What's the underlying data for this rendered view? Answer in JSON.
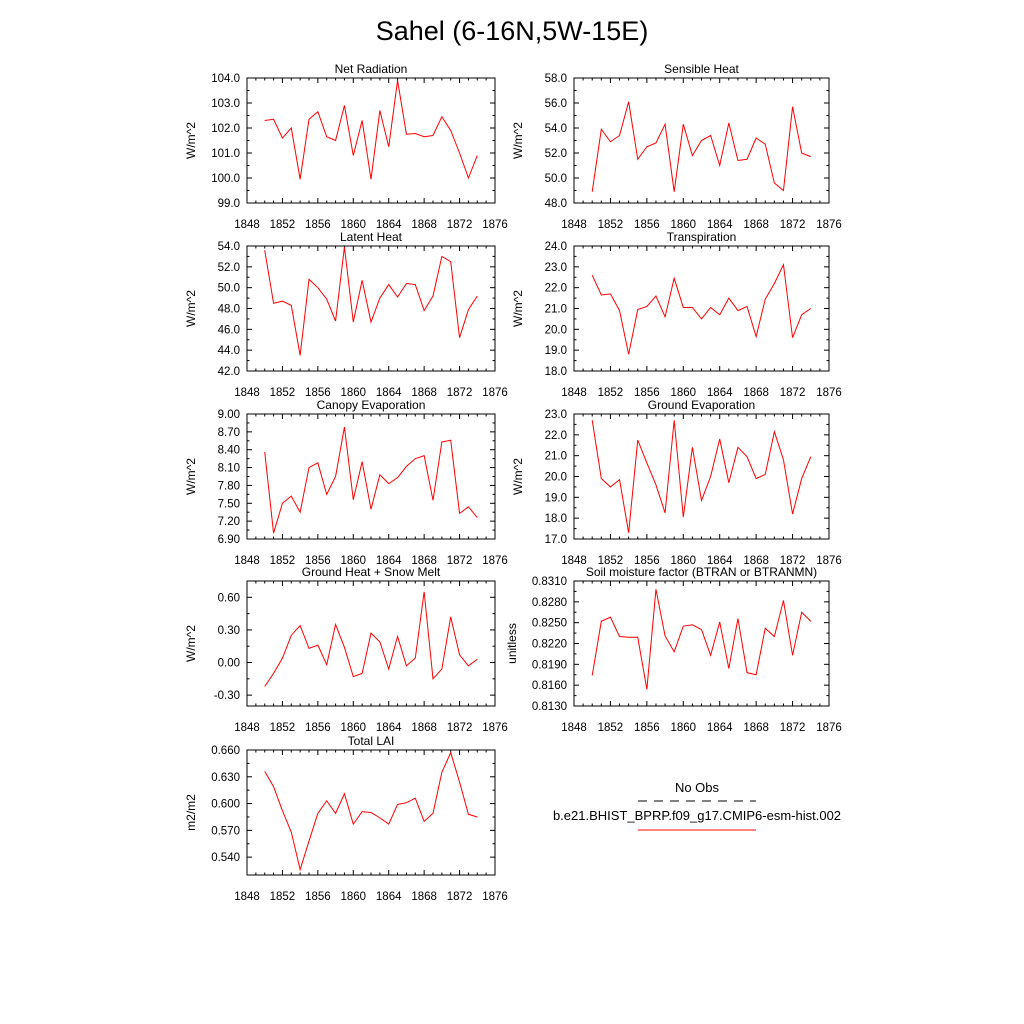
{
  "figure": {
    "title": "Sahel (6-16N,5W-15E)"
  },
  "legend": {
    "entries": [
      {
        "label": "No Obs",
        "style": "dashed",
        "color": "#000000"
      },
      {
        "label": "b.e21.BHIST_BPRP.f09_g17.CMIP6-esm-hist.002",
        "style": "solid",
        "color": "#ff0000"
      }
    ]
  },
  "colors": {
    "series": "#ff0000",
    "axes": "#000000",
    "background": "#ffffff"
  },
  "chart_data": [
    {
      "type": "line",
      "title": "Net Radiation",
      "ylabel": "W/m^2",
      "xlim": [
        1848,
        1876
      ],
      "ylim": [
        99.0,
        104.0
      ],
      "x_ticks": [
        "1848",
        "1852",
        "1856",
        "1860",
        "1864",
        "1868",
        "1872",
        "1876"
      ],
      "y_ticks": [
        "99.0",
        "100.0",
        "101.0",
        "102.0",
        "103.0",
        "104.0"
      ],
      "x": [
        1850,
        1851,
        1852,
        1853,
        1854,
        1855,
        1856,
        1857,
        1858,
        1859,
        1860,
        1861,
        1862,
        1863,
        1864,
        1865,
        1866,
        1867,
        1868,
        1869,
        1870,
        1871,
        1872,
        1873,
        1874
      ],
      "series": [
        {
          "values": [
            102.3,
            102.35,
            101.6,
            102.0,
            99.95,
            102.35,
            102.65,
            101.65,
            101.5,
            102.9,
            100.9,
            102.3,
            99.95,
            102.7,
            101.25,
            103.9,
            101.75,
            101.78,
            101.65,
            101.7,
            102.45,
            101.9,
            101.0,
            100.0,
            100.9
          ]
        }
      ]
    },
    {
      "type": "line",
      "title": "Sensible Heat",
      "ylabel": "W/m^2",
      "xlim": [
        1848,
        1876
      ],
      "ylim": [
        48.0,
        58.0
      ],
      "x_ticks": [
        "1848",
        "1852",
        "1856",
        "1860",
        "1864",
        "1868",
        "1872",
        "1876"
      ],
      "y_ticks": [
        "48.0",
        "50.0",
        "52.0",
        "54.0",
        "56.0",
        "58.0"
      ],
      "x": [
        1850,
        1851,
        1852,
        1853,
        1854,
        1855,
        1856,
        1857,
        1858,
        1859,
        1860,
        1861,
        1862,
        1863,
        1864,
        1865,
        1866,
        1867,
        1868,
        1869,
        1870,
        1871,
        1872,
        1873,
        1874
      ],
      "series": [
        {
          "values": [
            48.9,
            53.9,
            52.9,
            53.4,
            56.1,
            51.5,
            52.5,
            52.8,
            54.3,
            48.9,
            54.3,
            51.8,
            53.0,
            53.4,
            51.0,
            54.4,
            51.4,
            51.5,
            53.2,
            52.7,
            49.6,
            49.0,
            55.7,
            52.0,
            51.7
          ]
        }
      ]
    },
    {
      "type": "line",
      "title": "Latent Heat",
      "ylabel": "W/m^2",
      "xlim": [
        1848,
        1876
      ],
      "ylim": [
        42.0,
        54.0
      ],
      "x_ticks": [
        "1848",
        "1852",
        "1856",
        "1860",
        "1864",
        "1868",
        "1872",
        "1876"
      ],
      "y_ticks": [
        "42.0",
        "44.0",
        "46.0",
        "48.0",
        "50.0",
        "52.0",
        "54.0"
      ],
      "x": [
        1850,
        1851,
        1852,
        1853,
        1854,
        1855,
        1856,
        1857,
        1858,
        1859,
        1860,
        1861,
        1862,
        1863,
        1864,
        1865,
        1866,
        1867,
        1868,
        1869,
        1870,
        1871,
        1872,
        1873,
        1874
      ],
      "series": [
        {
          "values": [
            53.6,
            48.5,
            48.7,
            48.3,
            43.5,
            50.8,
            50.0,
            48.9,
            46.8,
            53.9,
            46.7,
            50.7,
            46.7,
            49.0,
            50.3,
            49.1,
            50.4,
            50.3,
            47.8,
            49.2,
            53.0,
            52.5,
            45.2,
            47.9,
            49.2
          ]
        }
      ]
    },
    {
      "type": "line",
      "title": "Transpiration",
      "ylabel": "W/m^2",
      "xlim": [
        1848,
        1876
      ],
      "ylim": [
        18.0,
        24.0
      ],
      "x_ticks": [
        "1848",
        "1852",
        "1856",
        "1860",
        "1864",
        "1868",
        "1872",
        "1876"
      ],
      "y_ticks": [
        "18.0",
        "19.0",
        "20.0",
        "21.0",
        "22.0",
        "23.0",
        "24.0"
      ],
      "x": [
        1850,
        1851,
        1852,
        1853,
        1854,
        1855,
        1856,
        1857,
        1858,
        1859,
        1860,
        1861,
        1862,
        1863,
        1864,
        1865,
        1866,
        1867,
        1868,
        1869,
        1870,
        1871,
        1872,
        1873,
        1874
      ],
      "series": [
        {
          "values": [
            22.6,
            21.65,
            21.7,
            20.9,
            18.8,
            20.95,
            21.1,
            21.6,
            20.6,
            22.45,
            21.05,
            21.05,
            20.5,
            21.05,
            20.7,
            21.5,
            20.9,
            21.1,
            19.65,
            21.45,
            22.2,
            23.1,
            19.6,
            20.7,
            21.0
          ]
        }
      ]
    },
    {
      "type": "line",
      "title": "Canopy Evaporation",
      "ylabel": "W/m^2",
      "xlim": [
        1848,
        1876
      ],
      "ylim": [
        6.9,
        9.0
      ],
      "x_ticks": [
        "1848",
        "1852",
        "1856",
        "1860",
        "1864",
        "1868",
        "1872",
        "1876"
      ],
      "y_ticks": [
        "6.90",
        "7.20",
        "7.50",
        "7.80",
        "8.10",
        "8.40",
        "8.70",
        "9.00"
      ],
      "x": [
        1850,
        1851,
        1852,
        1853,
        1854,
        1855,
        1856,
        1857,
        1858,
        1859,
        1860,
        1861,
        1862,
        1863,
        1864,
        1865,
        1866,
        1867,
        1868,
        1869,
        1870,
        1871,
        1872,
        1873,
        1874
      ],
      "series": [
        {
          "values": [
            8.36,
            7.0,
            7.5,
            7.62,
            7.35,
            8.1,
            8.18,
            7.65,
            7.95,
            8.78,
            7.56,
            8.2,
            7.4,
            7.98,
            7.83,
            7.93,
            8.12,
            8.25,
            8.3,
            7.55,
            8.53,
            8.56,
            7.33,
            7.44,
            7.26
          ]
        }
      ]
    },
    {
      "type": "line",
      "title": "Ground Evaporation",
      "ylabel": "W/m^2",
      "xlim": [
        1848,
        1876
      ],
      "ylim": [
        17.0,
        23.0
      ],
      "x_ticks": [
        "1848",
        "1852",
        "1856",
        "1860",
        "1864",
        "1868",
        "1872",
        "1876"
      ],
      "y_ticks": [
        "17.0",
        "18.0",
        "19.0",
        "20.0",
        "21.0",
        "22.0",
        "23.0"
      ],
      "x": [
        1850,
        1851,
        1852,
        1853,
        1854,
        1855,
        1856,
        1857,
        1858,
        1859,
        1860,
        1861,
        1862,
        1863,
        1864,
        1865,
        1866,
        1867,
        1868,
        1869,
        1870,
        1871,
        1872,
        1873,
        1874
      ],
      "series": [
        {
          "values": [
            22.7,
            19.9,
            19.5,
            19.85,
            17.3,
            21.75,
            20.65,
            19.6,
            18.25,
            22.7,
            18.05,
            21.4,
            18.85,
            20.0,
            21.8,
            19.7,
            21.4,
            20.95,
            19.9,
            20.1,
            22.15,
            20.8,
            18.2,
            19.9,
            20.95
          ]
        }
      ]
    },
    {
      "type": "line",
      "title": "Ground Heat + Snow Melt",
      "ylabel": "W/m^2",
      "xlim": [
        1848,
        1876
      ],
      "ylim": [
        -0.4,
        0.75
      ],
      "x_ticks": [
        "1848",
        "1852",
        "1856",
        "1860",
        "1864",
        "1868",
        "1872",
        "1876"
      ],
      "y_ticks": [
        "-0.30",
        "0.00",
        "0.30",
        "0.60"
      ],
      "y_tick_values": [
        -0.3,
        0.0,
        0.3,
        0.6
      ],
      "x": [
        1850,
        1851,
        1852,
        1853,
        1854,
        1855,
        1856,
        1857,
        1858,
        1859,
        1860,
        1861,
        1862,
        1863,
        1864,
        1865,
        1866,
        1867,
        1868,
        1869,
        1870,
        1871,
        1872,
        1873,
        1874
      ],
      "series": [
        {
          "values": [
            -0.22,
            -0.1,
            0.04,
            0.25,
            0.34,
            0.13,
            0.16,
            -0.02,
            0.35,
            0.14,
            -0.13,
            -0.1,
            0.27,
            0.19,
            -0.06,
            0.24,
            -0.03,
            0.04,
            0.65,
            -0.15,
            -0.06,
            0.42,
            0.07,
            -0.03,
            0.03
          ]
        }
      ]
    },
    {
      "type": "line",
      "title": "Soil moisture factor (BTRAN or BTRANMN)",
      "ylabel": "unitless",
      "xlim": [
        1848,
        1876
      ],
      "ylim": [
        0.813,
        0.831
      ],
      "x_ticks": [
        "1848",
        "1852",
        "1856",
        "1860",
        "1864",
        "1868",
        "1872",
        "1876"
      ],
      "y_ticks": [
        "0.8130",
        "0.8160",
        "0.8190",
        "0.8220",
        "0.8250",
        "0.8280",
        "0.8310"
      ],
      "x": [
        1850,
        1851,
        1852,
        1853,
        1854,
        1855,
        1856,
        1857,
        1858,
        1859,
        1860,
        1861,
        1862,
        1863,
        1864,
        1865,
        1866,
        1867,
        1868,
        1869,
        1870,
        1871,
        1872,
        1873,
        1874
      ],
      "series": [
        {
          "values": [
            0.8174,
            0.8252,
            0.8258,
            0.823,
            0.8229,
            0.8229,
            0.8154,
            0.8298,
            0.8231,
            0.8208,
            0.8245,
            0.8247,
            0.824,
            0.8203,
            0.8251,
            0.8184,
            0.8256,
            0.8178,
            0.8175,
            0.8242,
            0.823,
            0.8282,
            0.8203,
            0.8265,
            0.8252
          ]
        }
      ]
    },
    {
      "type": "line",
      "title": "Total LAI",
      "ylabel": "m2/m2",
      "xlim": [
        1848,
        1876
      ],
      "ylim": [
        0.52,
        0.66
      ],
      "x_ticks": [
        "1848",
        "1852",
        "1856",
        "1860",
        "1864",
        "1868",
        "1872",
        "1876"
      ],
      "y_ticks": [
        "0.540",
        "0.570",
        "0.600",
        "0.630",
        "0.660"
      ],
      "y_tick_values": [
        0.54,
        0.57,
        0.6,
        0.63,
        0.66
      ],
      "x": [
        1850,
        1851,
        1852,
        1853,
        1854,
        1855,
        1856,
        1857,
        1858,
        1859,
        1860,
        1861,
        1862,
        1863,
        1864,
        1865,
        1866,
        1867,
        1868,
        1869,
        1870,
        1871,
        1872,
        1873,
        1874
      ],
      "series": [
        {
          "values": [
            0.636,
            0.619,
            0.592,
            0.568,
            0.526,
            0.558,
            0.589,
            0.603,
            0.589,
            0.611,
            0.577,
            0.591,
            0.59,
            0.584,
            0.577,
            0.599,
            0.601,
            0.606,
            0.58,
            0.589,
            0.635,
            0.657,
            0.624,
            0.588,
            0.585
          ]
        }
      ]
    }
  ]
}
